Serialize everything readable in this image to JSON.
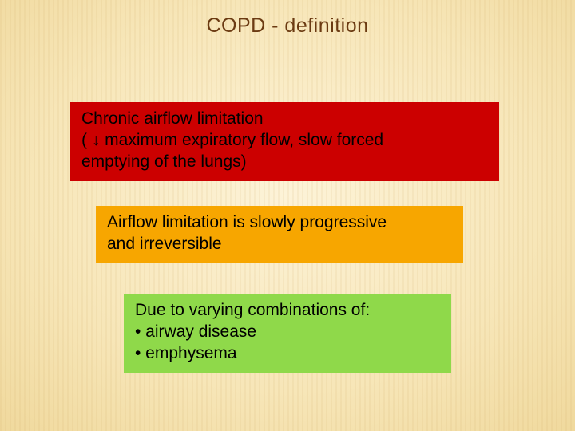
{
  "slide": {
    "title": "COPD - definition",
    "background": {
      "gradient_inner": "#fdf3d8",
      "gradient_mid": "#f7e6b8",
      "gradient_outer": "#e4c477",
      "stripe_color": "rgba(200,160,90,0.10)"
    },
    "title_color": "#6b3a12",
    "boxes": {
      "red": {
        "bg_color": "#cc0000",
        "line1": "Chronic airflow limitation",
        "line2_prefix": "( ",
        "line2_arrow": "↓",
        "line2_rest": " maximum expiratory flow, slow forced",
        "line3": "emptying of the lungs)"
      },
      "orange": {
        "bg_color": "#f7a600",
        "line1": "Airflow limitation is slowly progressive",
        "line2": "and irreversible"
      },
      "green": {
        "bg_color": "#8fd94a",
        "line1": "Due to varying combinations of:",
        "bullet1": "• airway disease",
        "bullet2": "• emphysema"
      }
    }
  }
}
